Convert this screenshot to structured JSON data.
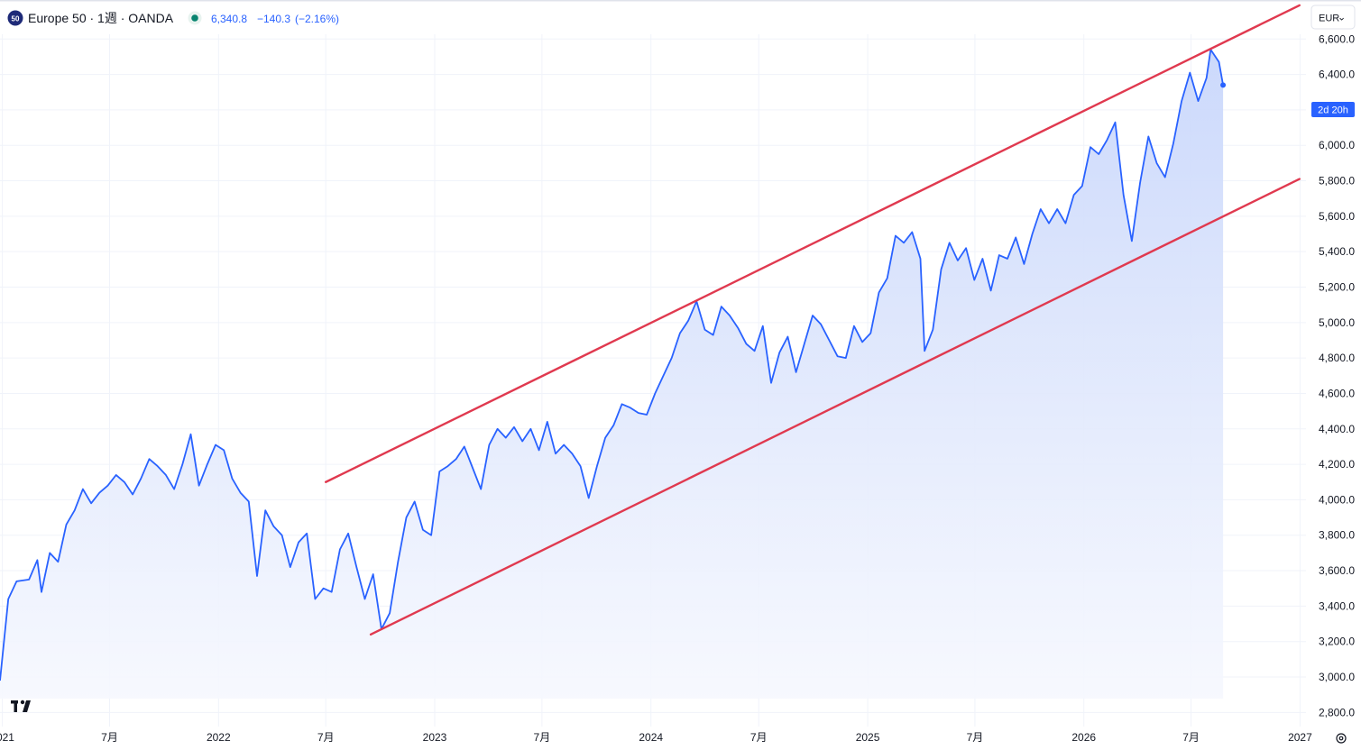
{
  "legend": {
    "symbol_badge": "50",
    "title": "Europe 50 · 1週 · OANDA",
    "last": "6,340.8",
    "change": "−140.3",
    "change_pct": "(−2.16%)"
  },
  "currency_button": "EUR",
  "countdown": "2d 20h",
  "colors": {
    "line": "#2962ff",
    "area_top": "#c9d7fb",
    "area_bottom": "#f6f8fe",
    "channel": "#e0394f",
    "status_dot": "#08846f"
  },
  "chart_data": {
    "type": "line",
    "symbol": "Europe 50",
    "interval": "1週",
    "source": "OANDA",
    "currency": "EUR",
    "ylim": [
      2700,
      6820
    ],
    "y_ticks": [
      2800,
      3000,
      3200,
      3400,
      3600,
      3800,
      4000,
      4200,
      4400,
      4600,
      4800,
      5000,
      5200,
      5400,
      5600,
      5800,
      6000,
      6200,
      6400,
      6600
    ],
    "y_tick_labels": [
      "2,800.0",
      "3,000.0",
      "3,200.0",
      "3,400.0",
      "3,600.0",
      "3,800.0",
      "4,000.0",
      "4,200.0",
      "4,400.0",
      "4,600.0",
      "4,800.0",
      "5,000.0",
      "5,200.0",
      "5,400.0",
      "5,600.0",
      "5,800.0",
      "6,000.0",
      "6,200.0",
      "6,400.0",
      "6,600.0"
    ],
    "x_range": [
      "2020-12-28",
      "2027-01-11"
    ],
    "x_ticks": [
      {
        "date": "2021-01-01",
        "label": "2021"
      },
      {
        "date": "2021-07-01",
        "label": "7月"
      },
      {
        "date": "2022-01-01",
        "label": "2022"
      },
      {
        "date": "2022-07-01",
        "label": "7月"
      },
      {
        "date": "2023-01-01",
        "label": "2023"
      },
      {
        "date": "2023-07-01",
        "label": "7月"
      },
      {
        "date": "2024-01-01",
        "label": "2024"
      },
      {
        "date": "2024-07-01",
        "label": "7月"
      },
      {
        "date": "2025-01-01",
        "label": "2025"
      },
      {
        "date": "2025-07-01",
        "label": "7月"
      },
      {
        "date": "2026-01-01",
        "label": "2026"
      },
      {
        "date": "2026-07-01",
        "label": "7月"
      },
      {
        "date": "2027-01-01",
        "label": "2027"
      }
    ],
    "grid": true,
    "series": [
      {
        "points": [
          [
            "2020-12-28",
            2980
          ],
          [
            "2021-01-11",
            3440
          ],
          [
            "2021-01-25",
            3540
          ],
          [
            "2021-02-15",
            3550
          ],
          [
            "2021-03-01",
            3660
          ],
          [
            "2021-03-08",
            3480
          ],
          [
            "2021-03-22",
            3700
          ],
          [
            "2021-04-05",
            3650
          ],
          [
            "2021-04-19",
            3860
          ],
          [
            "2021-05-03",
            3940
          ],
          [
            "2021-05-17",
            4060
          ],
          [
            "2021-05-31",
            3980
          ],
          [
            "2021-06-14",
            4040
          ],
          [
            "2021-06-28",
            4080
          ],
          [
            "2021-07-12",
            4140
          ],
          [
            "2021-07-26",
            4100
          ],
          [
            "2021-08-09",
            4030
          ],
          [
            "2021-08-23",
            4120
          ],
          [
            "2021-09-06",
            4230
          ],
          [
            "2021-09-20",
            4190
          ],
          [
            "2021-10-04",
            4140
          ],
          [
            "2021-10-18",
            4060
          ],
          [
            "2021-11-01",
            4200
          ],
          [
            "2021-11-15",
            4370
          ],
          [
            "2021-11-29",
            4080
          ],
          [
            "2021-12-13",
            4200
          ],
          [
            "2021-12-27",
            4310
          ],
          [
            "2022-01-10",
            4280
          ],
          [
            "2022-01-24",
            4120
          ],
          [
            "2022-02-07",
            4040
          ],
          [
            "2022-02-21",
            3990
          ],
          [
            "2022-03-07",
            3570
          ],
          [
            "2022-03-21",
            3940
          ],
          [
            "2022-04-04",
            3850
          ],
          [
            "2022-04-18",
            3800
          ],
          [
            "2022-05-02",
            3620
          ],
          [
            "2022-05-16",
            3760
          ],
          [
            "2022-05-30",
            3810
          ],
          [
            "2022-06-13",
            3440
          ],
          [
            "2022-06-27",
            3500
          ],
          [
            "2022-07-11",
            3480
          ],
          [
            "2022-07-25",
            3720
          ],
          [
            "2022-08-08",
            3810
          ],
          [
            "2022-08-22",
            3620
          ],
          [
            "2022-09-05",
            3440
          ],
          [
            "2022-09-19",
            3580
          ],
          [
            "2022-10-03",
            3270
          ],
          [
            "2022-10-17",
            3360
          ],
          [
            "2022-10-31",
            3650
          ],
          [
            "2022-11-14",
            3900
          ],
          [
            "2022-11-28",
            3990
          ],
          [
            "2022-12-12",
            3830
          ],
          [
            "2022-12-26",
            3800
          ],
          [
            "2023-01-09",
            4160
          ],
          [
            "2023-01-23",
            4190
          ],
          [
            "2023-02-06",
            4230
          ],
          [
            "2023-02-20",
            4300
          ],
          [
            "2023-03-06",
            4180
          ],
          [
            "2023-03-20",
            4060
          ],
          [
            "2023-04-03",
            4310
          ],
          [
            "2023-04-17",
            4400
          ],
          [
            "2023-05-01",
            4350
          ],
          [
            "2023-05-15",
            4410
          ],
          [
            "2023-05-29",
            4330
          ],
          [
            "2023-06-12",
            4400
          ],
          [
            "2023-06-26",
            4280
          ],
          [
            "2023-07-10",
            4440
          ],
          [
            "2023-07-24",
            4260
          ],
          [
            "2023-08-07",
            4310
          ],
          [
            "2023-08-21",
            4260
          ],
          [
            "2023-09-04",
            4190
          ],
          [
            "2023-09-18",
            4010
          ],
          [
            "2023-10-02",
            4190
          ],
          [
            "2023-10-16",
            4350
          ],
          [
            "2023-10-30",
            4420
          ],
          [
            "2023-11-13",
            4540
          ],
          [
            "2023-11-27",
            4520
          ],
          [
            "2023-12-11",
            4490
          ],
          [
            "2023-12-25",
            4480
          ],
          [
            "2024-01-08",
            4600
          ],
          [
            "2024-01-22",
            4700
          ],
          [
            "2024-02-05",
            4800
          ],
          [
            "2024-02-19",
            4940
          ],
          [
            "2024-03-04",
            5010
          ],
          [
            "2024-03-18",
            5120
          ],
          [
            "2024-04-01",
            4960
          ],
          [
            "2024-04-15",
            4930
          ],
          [
            "2024-04-29",
            5090
          ],
          [
            "2024-05-13",
            5040
          ],
          [
            "2024-05-27",
            4970
          ],
          [
            "2024-06-10",
            4880
          ],
          [
            "2024-06-24",
            4840
          ],
          [
            "2024-07-08",
            4980
          ],
          [
            "2024-07-22",
            4660
          ],
          [
            "2024-08-05",
            4830
          ],
          [
            "2024-08-19",
            4920
          ],
          [
            "2024-09-02",
            4720
          ],
          [
            "2024-09-16",
            4880
          ],
          [
            "2024-09-30",
            5040
          ],
          [
            "2024-10-14",
            4990
          ],
          [
            "2024-10-28",
            4900
          ],
          [
            "2024-11-11",
            4810
          ],
          [
            "2024-11-25",
            4800
          ],
          [
            "2024-12-09",
            4980
          ],
          [
            "2024-12-23",
            4890
          ],
          [
            "2025-01-06",
            4940
          ],
          [
            "2025-01-20",
            5170
          ],
          [
            "2025-02-03",
            5250
          ],
          [
            "2025-02-17",
            5490
          ],
          [
            "2025-03-03",
            5450
          ],
          [
            "2025-03-17",
            5510
          ],
          [
            "2025-03-31",
            5360
          ],
          [
            "2025-04-07",
            4840
          ],
          [
            "2025-04-21",
            4960
          ],
          [
            "2025-05-05",
            5300
          ],
          [
            "2025-05-19",
            5450
          ],
          [
            "2025-06-02",
            5350
          ],
          [
            "2025-06-16",
            5420
          ],
          [
            "2025-06-30",
            5240
          ],
          [
            "2025-07-14",
            5360
          ],
          [
            "2025-07-28",
            5180
          ],
          [
            "2025-08-11",
            5380
          ],
          [
            "2025-08-25",
            5360
          ],
          [
            "2025-09-08",
            5480
          ],
          [
            "2025-09-22",
            5330
          ],
          [
            "2025-10-06",
            5500
          ],
          [
            "2025-10-20",
            5640
          ],
          [
            "2025-11-03",
            5560
          ],
          [
            "2025-11-17",
            5640
          ],
          [
            "2025-12-01",
            5560
          ],
          [
            "2025-12-15",
            5720
          ],
          [
            "2025-12-29",
            5770
          ],
          [
            "2026-01-12",
            5990
          ],
          [
            "2026-01-26",
            5950
          ],
          [
            "2026-02-09",
            6030
          ],
          [
            "2026-02-23",
            6130
          ],
          [
            "2026-03-09",
            5720
          ],
          [
            "2026-03-23",
            5460
          ],
          [
            "2026-04-06",
            5790
          ],
          [
            "2026-04-20",
            6050
          ],
          [
            "2026-05-04",
            5900
          ],
          [
            "2026-05-18",
            5820
          ],
          [
            "2026-06-01",
            6010
          ],
          [
            "2026-06-15",
            6250
          ],
          [
            "2026-06-29",
            6410
          ],
          [
            "2026-07-13",
            6250
          ],
          [
            "2026-07-27",
            6380
          ],
          [
            "2026-08-03",
            6540
          ],
          [
            "2026-08-17",
            6470
          ],
          [
            "2026-08-24",
            6340
          ]
        ]
      }
    ],
    "last_value": 6340.8,
    "trendlines": [
      {
        "from": [
          "2022-07-01",
          4100
        ],
        "to": [
          "2026-12-31",
          6790
        ]
      },
      {
        "from": [
          "2022-09-15",
          3240
        ],
        "to": [
          "2026-12-31",
          5810
        ]
      }
    ]
  }
}
